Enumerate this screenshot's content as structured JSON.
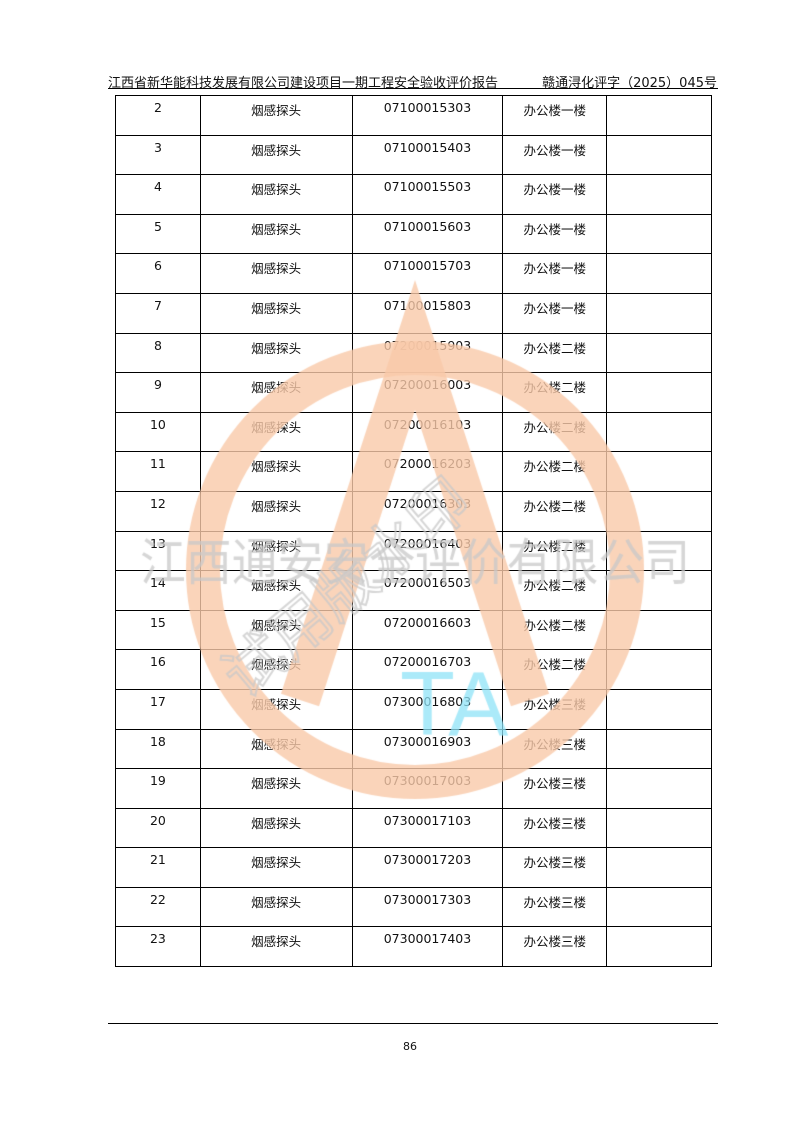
{
  "header": {
    "title": "江西省新华能科技发展有限公司建设项目一期工程安全验收评价报告",
    "doc_number": "赣通浔化评字（2025）045号"
  },
  "table": {
    "rows": [
      [
        "2",
        "烟感探头",
        "07100015303",
        "办公楼一楼",
        ""
      ],
      [
        "3",
        "烟感探头",
        "07100015403",
        "办公楼一楼",
        ""
      ],
      [
        "4",
        "烟感探头",
        "07100015503",
        "办公楼一楼",
        ""
      ],
      [
        "5",
        "烟感探头",
        "07100015603",
        "办公楼一楼",
        ""
      ],
      [
        "6",
        "烟感探头",
        "07100015703",
        "办公楼一楼",
        ""
      ],
      [
        "7",
        "烟感探头",
        "07100015803",
        "办公楼一楼",
        ""
      ],
      [
        "8",
        "烟感探头",
        "07200015903",
        "办公楼二楼",
        ""
      ],
      [
        "9",
        "烟感探头",
        "07200016003",
        "办公楼二楼",
        ""
      ],
      [
        "10",
        "烟感探头",
        "07200016103",
        "办公楼二楼",
        ""
      ],
      [
        "11",
        "烟感探头",
        "07200016203",
        "办公楼二楼",
        ""
      ],
      [
        "12",
        "烟感探头",
        "07200016303",
        "办公楼二楼",
        ""
      ],
      [
        "13",
        "烟感探头",
        "07200016403",
        "办公楼二楼",
        ""
      ],
      [
        "14",
        "烟感探头",
        "07200016503",
        "办公楼二楼",
        ""
      ],
      [
        "15",
        "烟感探头",
        "07200016603",
        "办公楼二楼",
        ""
      ],
      [
        "16",
        "烟感探头",
        "07200016703",
        "办公楼二楼",
        ""
      ],
      [
        "17",
        "烟感探头",
        "07300016803",
        "办公楼三楼",
        ""
      ],
      [
        "18",
        "烟感探头",
        "07300016903",
        "办公楼三楼",
        ""
      ],
      [
        "19",
        "烟感探头",
        "07300017003",
        "办公楼三楼",
        ""
      ],
      [
        "20",
        "烟感探头",
        "07300017103",
        "办公楼三楼",
        ""
      ],
      [
        "21",
        "烟感探头",
        "07300017203",
        "办公楼三楼",
        ""
      ],
      [
        "22",
        "烟感探头",
        "07300017303",
        "办公楼三楼",
        ""
      ],
      [
        "23",
        "烟感探头",
        "07300017403",
        "办公楼三楼",
        ""
      ]
    ]
  },
  "footer": {
    "page_number": "86"
  },
  "watermark": {
    "company": "江西通安安全评价有限公司",
    "diagonal": "试用版水印",
    "logo_letters": "TA",
    "colors": {
      "ring": "#f9c9a9",
      "text": "#c8c8c8",
      "logo": "#8fe3f7"
    }
  }
}
